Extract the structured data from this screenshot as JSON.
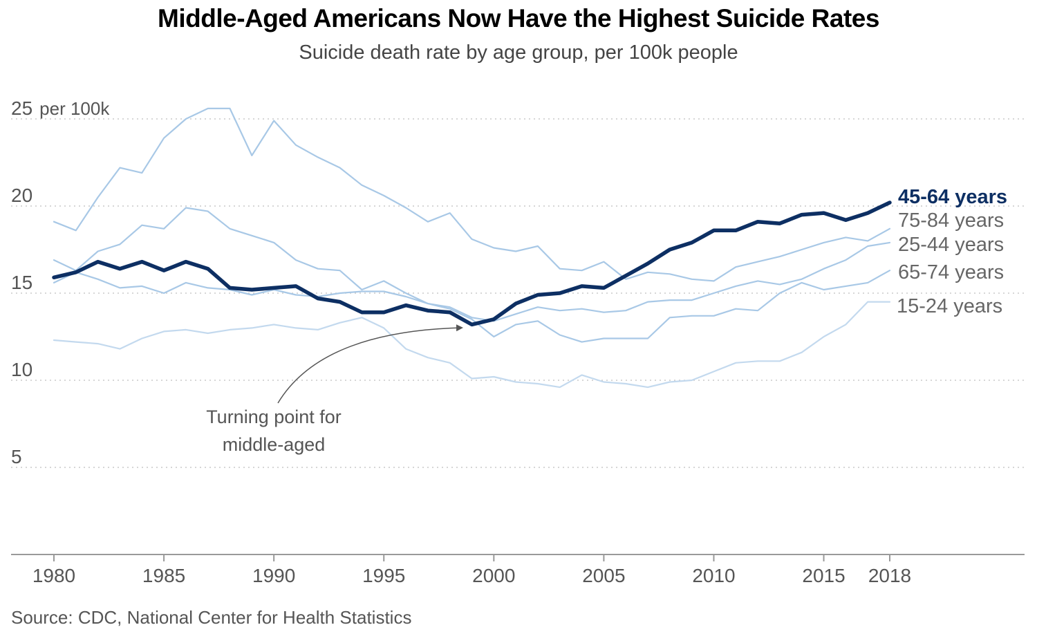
{
  "title": "Middle-Aged Americans Now Have the Highest Suicide Rates",
  "subtitle": "Suicide death rate by age group, per 100k people",
  "source": "Source: CDC, National Center for Health Statistics",
  "chart_data": {
    "type": "line",
    "x_ticks": [
      {
        "value": 1980,
        "label": "1980"
      },
      {
        "value": 1985,
        "label": "1985"
      },
      {
        "value": 1990,
        "label": "1990"
      },
      {
        "value": 1995,
        "label": "1995"
      },
      {
        "value": 2000,
        "label": "2000"
      },
      {
        "value": 2005,
        "label": "2005"
      },
      {
        "value": 2010,
        "label": "2010"
      },
      {
        "value": 2015,
        "label": "2015"
      },
      {
        "value": 2018,
        "label": "2018"
      }
    ],
    "y_ticks": [
      {
        "value": 25,
        "label": "25",
        "unit": "per 100k"
      },
      {
        "value": 20,
        "label": "20"
      },
      {
        "value": 15,
        "label": "15"
      },
      {
        "value": 10,
        "label": "10"
      },
      {
        "value": 5,
        "label": "5"
      }
    ],
    "xlim": [
      1979,
      2024.5
    ],
    "ylim": [
      0,
      27
    ],
    "grid": "horizontal dotted",
    "x": [
      1980,
      1981,
      1982,
      1983,
      1984,
      1985,
      1986,
      1987,
      1988,
      1989,
      1990,
      1991,
      1992,
      1993,
      1994,
      1995,
      1996,
      1997,
      1998,
      1999,
      2000,
      2001,
      2002,
      2003,
      2004,
      2005,
      2006,
      2007,
      2008,
      2009,
      2010,
      2011,
      2012,
      2013,
      2014,
      2015,
      2016,
      2017,
      2018
    ],
    "series": [
      {
        "name": "75-84 years",
        "color": "#a8c8e6",
        "emphasis": false,
        "values": [
          19.1,
          18.6,
          20.5,
          22.2,
          21.9,
          23.9,
          25.0,
          25.6,
          25.6,
          22.9,
          24.9,
          23.5,
          22.8,
          22.2,
          21.2,
          20.6,
          19.9,
          19.1,
          19.6,
          18.1,
          17.6,
          17.4,
          17.7,
          16.4,
          16.3,
          16.8,
          15.8,
          16.2,
          16.1,
          15.8,
          15.7,
          16.5,
          16.8,
          17.1,
          17.5,
          17.9,
          18.2,
          18.0,
          18.7
        ]
      },
      {
        "name": "45-64 years",
        "color": "#0d2f63",
        "emphasis": true,
        "values": [
          15.9,
          16.2,
          16.8,
          16.4,
          16.8,
          16.3,
          16.8,
          16.4,
          15.3,
          15.2,
          15.3,
          15.4,
          14.7,
          14.5,
          13.9,
          13.9,
          14.3,
          14.0,
          13.9,
          13.2,
          13.5,
          14.4,
          14.9,
          15.0,
          15.4,
          15.3,
          16.0,
          16.7,
          17.5,
          17.9,
          18.6,
          18.6,
          19.1,
          19.0,
          19.5,
          19.6,
          19.2,
          19.6,
          20.2
        ]
      },
      {
        "name": "25-44 years",
        "color": "#a8c8e6",
        "emphasis": false,
        "values": [
          15.6,
          16.2,
          15.8,
          15.3,
          15.4,
          15.0,
          15.6,
          15.3,
          15.2,
          14.9,
          15.2,
          14.9,
          14.8,
          15.0,
          15.1,
          15.1,
          14.8,
          14.4,
          14.2,
          13.6,
          13.4,
          13.8,
          14.2,
          14.0,
          14.1,
          13.9,
          14.0,
          14.5,
          14.6,
          14.6,
          15.0,
          15.4,
          15.7,
          15.5,
          15.8,
          16.4,
          16.9,
          17.7,
          17.9
        ]
      },
      {
        "name": "65-74 years",
        "color": "#a8c8e6",
        "emphasis": false,
        "values": [
          16.9,
          16.3,
          17.4,
          17.8,
          18.9,
          18.7,
          19.9,
          19.7,
          18.7,
          18.3,
          17.9,
          16.9,
          16.4,
          16.3,
          15.2,
          15.7,
          15.0,
          14.4,
          14.1,
          13.5,
          12.5,
          13.2,
          13.4,
          12.6,
          12.2,
          12.4,
          12.4,
          12.4,
          13.6,
          13.7,
          13.7,
          14.1,
          14.0,
          15.0,
          15.6,
          15.2,
          15.4,
          15.6,
          16.3
        ]
      },
      {
        "name": "15-24 years",
        "color": "#c3d9ee",
        "emphasis": false,
        "values": [
          12.3,
          12.2,
          12.1,
          11.8,
          12.4,
          12.8,
          12.9,
          12.7,
          12.9,
          13.0,
          13.2,
          13.0,
          12.9,
          13.3,
          13.6,
          13.0,
          11.8,
          11.3,
          11.0,
          10.1,
          10.2,
          9.9,
          9.8,
          9.6,
          10.3,
          9.9,
          9.8,
          9.6,
          9.9,
          10.0,
          10.5,
          11.0,
          11.1,
          11.1,
          11.6,
          12.5,
          13.2,
          14.5,
          14.5
        ]
      }
    ],
    "annotation": {
      "lines": [
        "Turning point for",
        "middle-aged"
      ],
      "points_to": {
        "x": 1999,
        "y": 13.2
      }
    }
  }
}
